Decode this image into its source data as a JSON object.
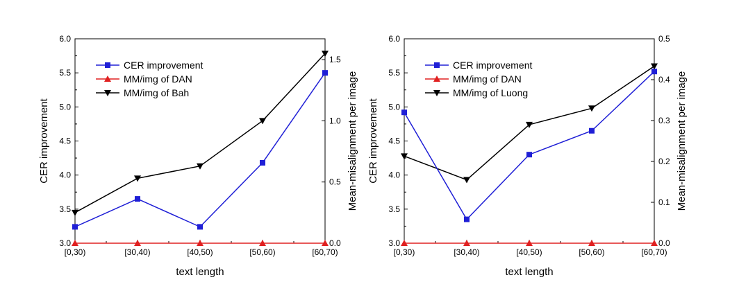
{
  "chart_data": [
    {
      "type": "line",
      "categories": [
        "[0,30)",
        "[30,40)",
        "[40,50)",
        "[50,60)",
        "[60,70)"
      ],
      "xlabel": "text length",
      "ylabel": "CER improvement",
      "y2label": "Mean-misalignment per image",
      "ylim": [
        3.0,
        6.0
      ],
      "yticks": [
        "3.0",
        "3.5",
        "4.0",
        "4.5",
        "5.0",
        "5.5",
        "6.0"
      ],
      "y2lim": [
        0.0,
        1.67
      ],
      "y2ticks": [
        "0.0",
        "0.5",
        "1.0",
        "1.5"
      ],
      "legend_position": "top-left",
      "series": [
        {
          "name": "CER improvement",
          "axis": "left",
          "color": "#1f1fd6",
          "marker": "square",
          "values": [
            3.24,
            3.65,
            3.24,
            4.18,
            5.5
          ]
        },
        {
          "name": "MM/img of DAN",
          "axis": "right",
          "color": "#e02020",
          "marker": "triangle-up",
          "values": [
            0.0,
            0.0,
            0.0,
            0.0,
            0.0
          ]
        },
        {
          "name": "MM/img of Bah",
          "axis": "right",
          "color": "#000000",
          "marker": "triangle-down",
          "values": [
            0.25,
            0.53,
            0.63,
            1.0,
            1.55
          ]
        }
      ]
    },
    {
      "type": "line",
      "categories": [
        "[0,30)",
        "[30,40)",
        "[40,50)",
        "[50,60)",
        "[60,70)"
      ],
      "xlabel": "text length",
      "ylabel": "CER improvement",
      "y2label": "Mean-misalignment per image",
      "ylim": [
        3.0,
        6.0
      ],
      "yticks": [
        "3.0",
        "3.5",
        "4.0",
        "4.5",
        "5.0",
        "5.5",
        "6.0"
      ],
      "y2lim": [
        0.0,
        0.5
      ],
      "y2ticks": [
        "0.0",
        "0.1",
        "0.2",
        "0.3",
        "0.4",
        "0.5"
      ],
      "legend_position": "top-left",
      "series": [
        {
          "name": "CER improvement",
          "axis": "left",
          "color": "#1f1fd6",
          "marker": "square",
          "values": [
            4.92,
            3.35,
            4.3,
            4.65,
            5.52
          ]
        },
        {
          "name": "MM/img of DAN",
          "axis": "right",
          "color": "#e02020",
          "marker": "triangle-up",
          "values": [
            0.0,
            0.0,
            0.0,
            0.0,
            0.0
          ]
        },
        {
          "name": "MM/img of Luong",
          "axis": "right",
          "color": "#000000",
          "marker": "triangle-down",
          "values": [
            0.213,
            0.155,
            0.29,
            0.33,
            0.433
          ]
        }
      ]
    }
  ]
}
